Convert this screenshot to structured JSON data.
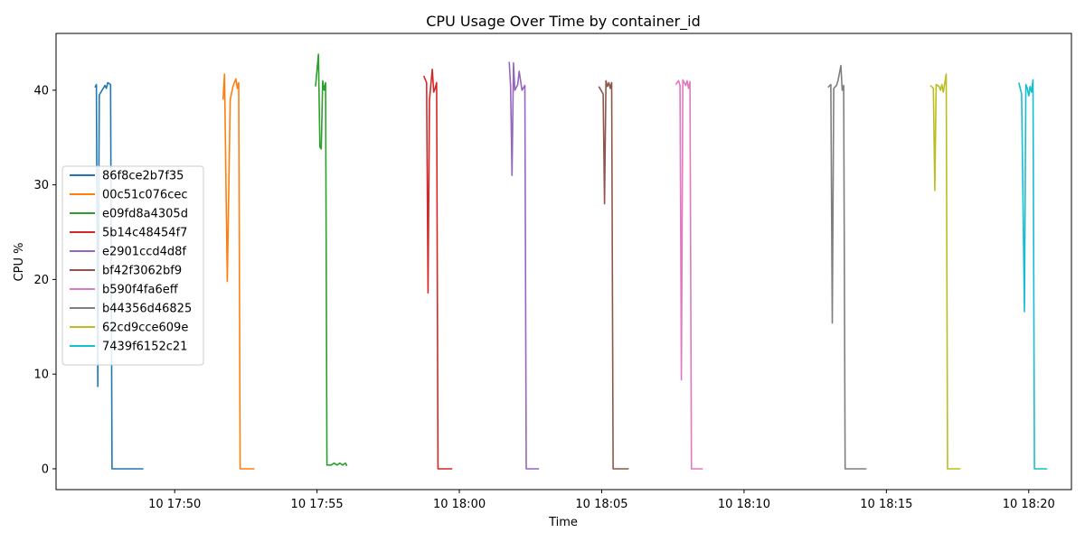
{
  "chart_data": {
    "type": "line",
    "title": "CPU Usage Over Time by container_id",
    "xlabel": "Time",
    "ylabel": "CPU %",
    "xlim": [
      "2023-01-10T17:45:50",
      "2023-01-10T18:21:30"
    ],
    "ylim": [
      -2.2,
      46
    ],
    "x_ticks": [
      {
        "time": "2023-01-10T17:50:00",
        "label": "10 17:50"
      },
      {
        "time": "2023-01-10T17:55:00",
        "label": "10 17:55"
      },
      {
        "time": "2023-01-10T18:00:00",
        "label": "10 18:00"
      },
      {
        "time": "2023-01-10T18:05:00",
        "label": "10 18:05"
      },
      {
        "time": "2023-01-10T18:10:00",
        "label": "10 18:10"
      },
      {
        "time": "2023-01-10T18:15:00",
        "label": "10 18:15"
      },
      {
        "time": "2023-01-10T18:20:00",
        "label": "10 18:20"
      }
    ],
    "y_ticks": [
      {
        "value": 0,
        "label": "0"
      },
      {
        "value": 10,
        "label": "10"
      },
      {
        "value": 20,
        "label": "20"
      },
      {
        "value": 30,
        "label": "30"
      },
      {
        "value": 40,
        "label": "40"
      }
    ],
    "grid": false,
    "legend_position": "center-left",
    "series": [
      {
        "name": "86f8ce2b7f35",
        "color": "#1f77b4",
        "points": [
          [
            "17:47:12",
            40.3
          ],
          [
            "17:47:15",
            40.6
          ],
          [
            "17:47:18",
            8.7
          ],
          [
            "17:47:21",
            39.5
          ],
          [
            "17:47:27",
            40.0
          ],
          [
            "17:47:33",
            40.5
          ],
          [
            "17:47:36",
            40.2
          ],
          [
            "17:47:39",
            40.8
          ],
          [
            "17:47:45",
            40.6
          ],
          [
            "17:47:48",
            0
          ],
          [
            "17:48:00",
            0
          ],
          [
            "17:48:30",
            0
          ],
          [
            "17:48:54",
            0
          ]
        ]
      },
      {
        "name": "00c51c076cec",
        "color": "#ff7f0e",
        "points": [
          [
            "17:51:42",
            39.0
          ],
          [
            "17:51:45",
            41.7
          ],
          [
            "17:51:51",
            19.8
          ],
          [
            "17:51:57",
            39.0
          ],
          [
            "17:52:03",
            40.4
          ],
          [
            "17:52:09",
            41.2
          ],
          [
            "17:52:12",
            40.2
          ],
          [
            "17:52:15",
            40.8
          ],
          [
            "17:52:18",
            0
          ],
          [
            "17:52:30",
            0
          ],
          [
            "17:52:48",
            0
          ]
        ]
      },
      {
        "name": "e09fd8a4305d",
        "color": "#2ca02c",
        "points": [
          [
            "17:54:57",
            40.4
          ],
          [
            "17:55:03",
            43.8
          ],
          [
            "17:55:06",
            34.0
          ],
          [
            "17:55:09",
            33.8
          ],
          [
            "17:55:12",
            41.0
          ],
          [
            "17:55:15",
            40.0
          ],
          [
            "17:55:18",
            40.8
          ],
          [
            "17:55:21",
            0.4
          ],
          [
            "17:55:30",
            0.4
          ],
          [
            "17:55:36",
            0.6
          ],
          [
            "17:55:42",
            0.4
          ],
          [
            "17:55:48",
            0.6
          ],
          [
            "17:55:54",
            0.4
          ],
          [
            "17:56:00",
            0.6
          ],
          [
            "17:56:03",
            0.3
          ]
        ]
      },
      {
        "name": "5b14c48454f7",
        "color": "#d62728",
        "points": [
          [
            "17:58:45",
            41.5
          ],
          [
            "17:58:51",
            40.8
          ],
          [
            "17:58:54",
            18.6
          ],
          [
            "17:58:57",
            39.0
          ],
          [
            "17:59:03",
            42.2
          ],
          [
            "17:59:06",
            39.8
          ],
          [
            "17:59:09",
            40.2
          ],
          [
            "17:59:12",
            40.8
          ],
          [
            "17:59:15",
            0
          ],
          [
            "17:59:30",
            0
          ],
          [
            "17:59:45",
            0
          ]
        ]
      },
      {
        "name": "e2901ccd4d8f",
        "color": "#9467bd",
        "points": [
          [
            "18:01:45",
            43.0
          ],
          [
            "18:01:48",
            40.4
          ],
          [
            "18:01:51",
            31.0
          ],
          [
            "18:01:54",
            42.9
          ],
          [
            "18:01:57",
            40.0
          ],
          [
            "18:02:03",
            40.6
          ],
          [
            "18:02:06",
            42.0
          ],
          [
            "18:02:12",
            40.0
          ],
          [
            "18:02:18",
            40.5
          ],
          [
            "18:02:21",
            0
          ],
          [
            "18:02:36",
            0
          ],
          [
            "18:02:48",
            0
          ]
        ]
      },
      {
        "name": "bf42f3062bf9",
        "color": "#8c564b",
        "points": [
          [
            "18:04:54",
            40.4
          ],
          [
            "18:05:03",
            39.6
          ],
          [
            "18:05:06",
            28.0
          ],
          [
            "18:05:09",
            41.0
          ],
          [
            "18:05:12",
            40.4
          ],
          [
            "18:05:15",
            40.8
          ],
          [
            "18:05:18",
            40.2
          ],
          [
            "18:05:21",
            40.8
          ],
          [
            "18:05:24",
            0
          ],
          [
            "18:05:40",
            0
          ],
          [
            "18:05:57",
            0
          ]
        ]
      },
      {
        "name": "b590f4fa6eff",
        "color": "#e377c2",
        "points": [
          [
            "18:07:36",
            40.6
          ],
          [
            "18:07:42",
            41.0
          ],
          [
            "18:07:45",
            40.5
          ],
          [
            "18:07:48",
            9.4
          ],
          [
            "18:07:51",
            41.1
          ],
          [
            "18:07:57",
            40.5
          ],
          [
            "18:08:00",
            41.0
          ],
          [
            "18:08:03",
            40.2
          ],
          [
            "18:08:06",
            40.9
          ],
          [
            "18:08:09",
            0
          ],
          [
            "18:08:20",
            0
          ],
          [
            "18:08:33",
            0
          ]
        ]
      },
      {
        "name": "b44356d46825",
        "color": "#7f7f7f",
        "points": [
          [
            "18:12:57",
            40.3
          ],
          [
            "18:13:03",
            40.6
          ],
          [
            "18:13:06",
            15.4
          ],
          [
            "18:13:09",
            40.2
          ],
          [
            "18:13:15",
            40.5
          ],
          [
            "18:13:18",
            41.0
          ],
          [
            "18:13:24",
            42.6
          ],
          [
            "18:13:27",
            40.0
          ],
          [
            "18:13:30",
            40.5
          ],
          [
            "18:13:33",
            0
          ],
          [
            "18:13:48",
            0
          ],
          [
            "18:14:06",
            0
          ],
          [
            "18:14:18",
            0
          ]
        ]
      },
      {
        "name": "62cd9cce609e",
        "color": "#bcbd22",
        "points": [
          [
            "18:16:33",
            40.5
          ],
          [
            "18:16:39",
            40.2
          ],
          [
            "18:16:42",
            29.4
          ],
          [
            "18:16:45",
            40.6
          ],
          [
            "18:16:51",
            40.4
          ],
          [
            "18:16:54",
            40.0
          ],
          [
            "18:16:57",
            40.6
          ],
          [
            "18:17:00",
            39.8
          ],
          [
            "18:17:06",
            41.7
          ],
          [
            "18:17:09",
            0
          ],
          [
            "18:17:24",
            0
          ],
          [
            "18:17:36",
            0
          ]
        ]
      },
      {
        "name": "7439f6152c21",
        "color": "#17becf",
        "points": [
          [
            "18:19:39",
            40.8
          ],
          [
            "18:19:45",
            39.6
          ],
          [
            "18:19:51",
            16.6
          ],
          [
            "18:19:54",
            40.6
          ],
          [
            "18:19:57",
            40.2
          ],
          [
            "18:20:00",
            39.4
          ],
          [
            "18:20:03",
            40.4
          ],
          [
            "18:20:06",
            39.8
          ],
          [
            "18:20:09",
            41.1
          ],
          [
            "18:20:12",
            0
          ],
          [
            "18:20:27",
            0
          ],
          [
            "18:20:39",
            0
          ]
        ]
      }
    ]
  }
}
